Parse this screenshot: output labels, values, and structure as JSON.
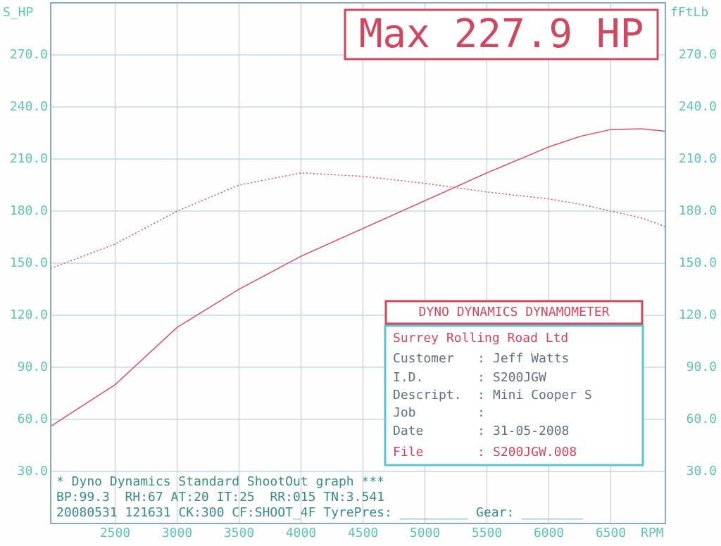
{
  "chart_data": {
    "type": "line",
    "title": "Max 227.9 HP",
    "y_label": "S_HP",
    "y2_label": "fFtLb",
    "x_label": "RPM",
    "x": [
      1980,
      2500,
      3000,
      3500,
      4000,
      4500,
      5000,
      5500,
      6000,
      6250,
      6500,
      6750,
      6940
    ],
    "series": [
      {
        "color": "#d85068",
        "style": "solid",
        "values": [
          56,
          80,
          113,
          135,
          154,
          170,
          186,
          202,
          217,
          223,
          227,
          227.4,
          226
        ]
      },
      {
        "color": "#d85068",
        "style": "dotted",
        "axis": "y2",
        "values": [
          147,
          161,
          180,
          195,
          202,
          200,
          196,
          191,
          187,
          184,
          180,
          176,
          171
        ]
      }
    ],
    "xlim": [
      1980,
      6940
    ],
    "xticks": [
      2500,
      3000,
      3500,
      4000,
      4500,
      5000,
      5500,
      6000,
      6500
    ],
    "ylim": [
      0,
      300
    ],
    "yticks": [
      {
        "value": 30,
        "label": "30.0"
      },
      {
        "value": 60,
        "label": "60.0"
      },
      {
        "value": 90,
        "label": "90.0"
      },
      {
        "value": 120,
        "label": "120.0"
      },
      {
        "value": 150,
        "label": "150.0"
      },
      {
        "value": 180,
        "label": "180.0"
      },
      {
        "value": 210,
        "label": "210.0"
      },
      {
        "value": 240,
        "label": "240.0"
      },
      {
        "value": 270,
        "label": "270.0"
      }
    ],
    "y2lim": [
      0,
      300
    ],
    "y2ticks": [
      {
        "value": 30,
        "label": "30.0"
      },
      {
        "value": 60,
        "label": "60.0"
      },
      {
        "value": 90,
        "label": "90.0"
      },
      {
        "value": 120,
        "label": "120.0"
      },
      {
        "value": 150,
        "label": "150.0"
      },
      {
        "value": 180,
        "label": "180.0"
      },
      {
        "value": 210,
        "label": "210.0"
      },
      {
        "value": 240,
        "label": "240.0"
      },
      {
        "value": 270,
        "label": "270.0"
      }
    ],
    "grid": true,
    "info_box": {
      "header": "DYNO DYNAMICS DYNAMOMETER",
      "company": "Surrey Rolling Road Ltd",
      "rows": [
        [
          "Customer",
          ":",
          "Jeff Watts"
        ],
        [
          "I.D.",
          ":",
          "S200JGW"
        ],
        [
          "Descript.",
          ":",
          "Mini Cooper S"
        ],
        [
          "Job",
          ":"
        ],
        [
          "Date",
          ":",
          "31-05-2008"
        ],
        [
          "File",
          ":",
          "S200JGW.008"
        ]
      ]
    },
    "footer": [
      "* Dyno Dynamics Standard ShootOut graph ***",
      "BP:99.3  RH:67 AT:20 IT:25  RR:015 TN:3.541",
      "20080531 121631 CK:300 CF:SHOOT_4F TyrePres: _________ Gear: ________"
    ]
  }
}
